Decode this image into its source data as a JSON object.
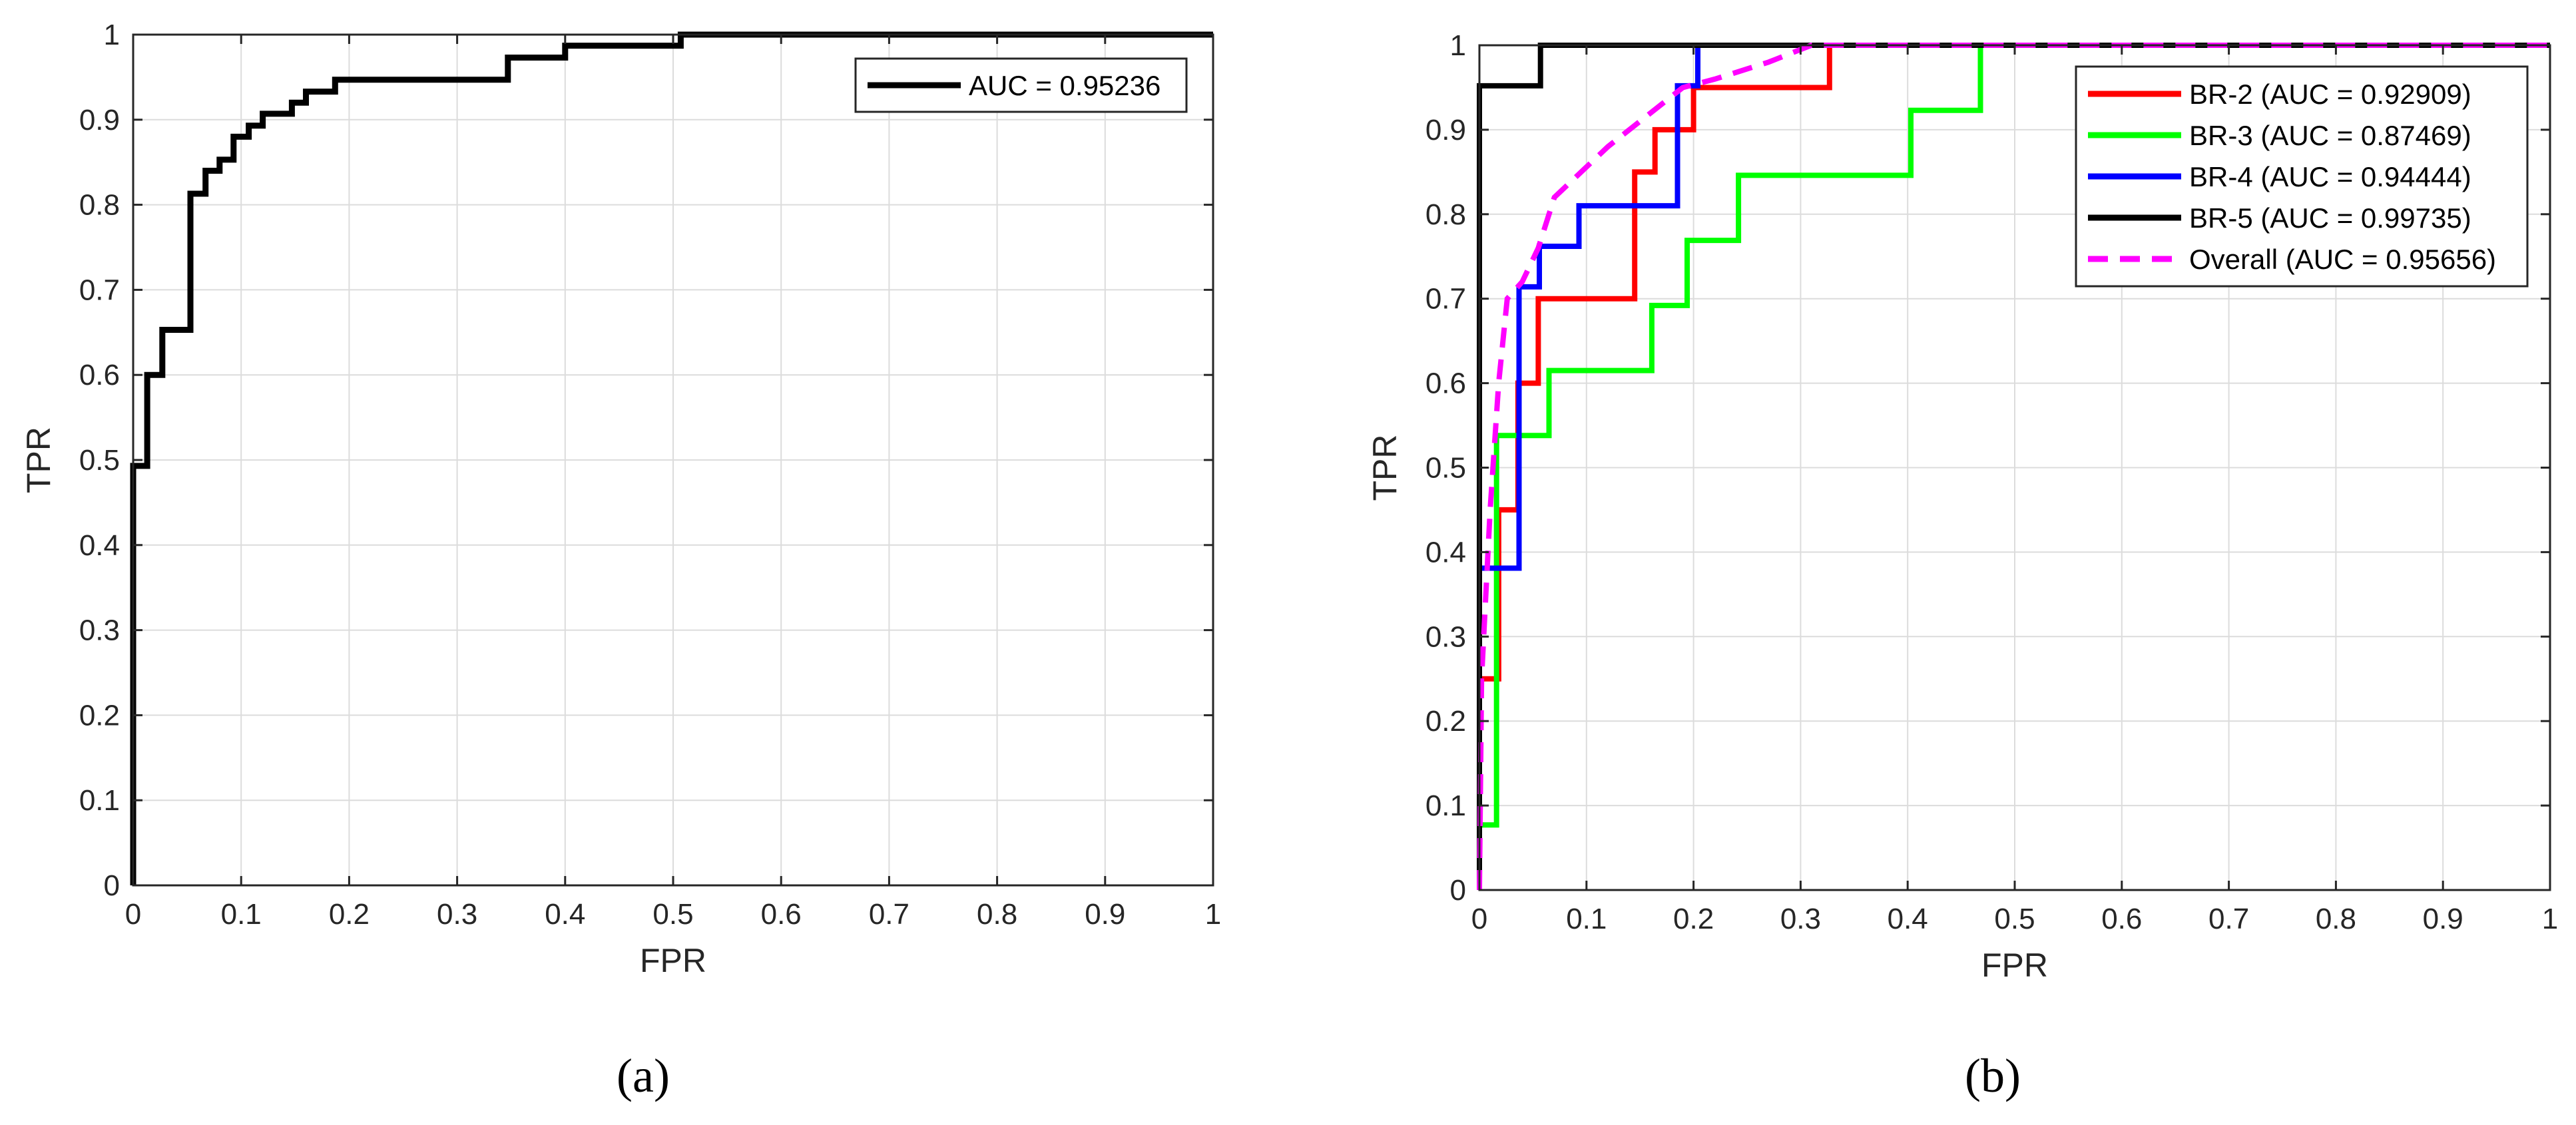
{
  "chart_data": [
    {
      "type": "line",
      "caption": "(a)",
      "xlabel": "FPR",
      "ylabel": "TPR",
      "xlim": [
        0,
        1
      ],
      "ylim": [
        0,
        1
      ],
      "grid": true,
      "legend_position": "top-right",
      "xticks": [
        "0",
        "0.1",
        "0.2",
        "0.3",
        "0.4",
        "0.5",
        "0.6",
        "0.7",
        "0.8",
        "0.9",
        "1"
      ],
      "yticks": [
        "0",
        "0.1",
        "0.2",
        "0.3",
        "0.4",
        "0.5",
        "0.6",
        "0.7",
        "0.8",
        "0.9",
        "1"
      ],
      "series": [
        {
          "name": "AUC = 0.95236",
          "color": "#000000",
          "dashed": false,
          "points": [
            [
              0,
              0
            ],
            [
              0,
              0.493
            ],
            [
              0.013,
              0.493
            ],
            [
              0.013,
              0.6
            ],
            [
              0.027,
              0.6
            ],
            [
              0.027,
              0.653
            ],
            [
              0.053,
              0.653
            ],
            [
              0.053,
              0.813
            ],
            [
              0.067,
              0.813
            ],
            [
              0.067,
              0.84
            ],
            [
              0.08,
              0.84
            ],
            [
              0.08,
              0.853
            ],
            [
              0.093,
              0.853
            ],
            [
              0.093,
              0.88
            ],
            [
              0.107,
              0.88
            ],
            [
              0.107,
              0.893
            ],
            [
              0.12,
              0.893
            ],
            [
              0.12,
              0.907
            ],
            [
              0.147,
              0.907
            ],
            [
              0.147,
              0.92
            ],
            [
              0.16,
              0.92
            ],
            [
              0.16,
              0.933
            ],
            [
              0.187,
              0.933
            ],
            [
              0.187,
              0.947
            ],
            [
              0.347,
              0.947
            ],
            [
              0.347,
              0.973
            ],
            [
              0.4,
              0.973
            ],
            [
              0.4,
              0.987
            ],
            [
              0.507,
              0.987
            ],
            [
              0.507,
              1
            ],
            [
              1,
              1
            ]
          ]
        }
      ]
    },
    {
      "type": "line",
      "caption": "(b)",
      "xlabel": "FPR",
      "ylabel": "TPR",
      "xlim": [
        0,
        1
      ],
      "ylim": [
        0,
        1
      ],
      "grid": true,
      "legend_position": "top-right",
      "xticks": [
        "0",
        "0.1",
        "0.2",
        "0.3",
        "0.4",
        "0.5",
        "0.6",
        "0.7",
        "0.8",
        "0.9",
        "1"
      ],
      "yticks": [
        "0",
        "0.1",
        "0.2",
        "0.3",
        "0.4",
        "0.5",
        "0.6",
        "0.7",
        "0.8",
        "0.9",
        "1"
      ],
      "series": [
        {
          "name": "BR-2 (AUC = 0.92909)",
          "color": "#ff0000",
          "dashed": false,
          "points": [
            [
              0,
              0
            ],
            [
              0,
              0.25
            ],
            [
              0.018,
              0.25
            ],
            [
              0.018,
              0.45
            ],
            [
              0.036,
              0.45
            ],
            [
              0.036,
              0.6
            ],
            [
              0.055,
              0.6
            ],
            [
              0.055,
              0.7
            ],
            [
              0.145,
              0.7
            ],
            [
              0.145,
              0.85
            ],
            [
              0.164,
              0.85
            ],
            [
              0.164,
              0.9
            ],
            [
              0.2,
              0.9
            ],
            [
              0.2,
              0.95
            ],
            [
              0.327,
              0.95
            ],
            [
              0.327,
              1
            ],
            [
              1,
              1
            ]
          ]
        },
        {
          "name": "BR-3 (AUC = 0.87469)",
          "color": "#00ff00",
          "dashed": false,
          "points": [
            [
              0,
              0
            ],
            [
              0,
              0.077
            ],
            [
              0.016,
              0.077
            ],
            [
              0.016,
              0.538
            ],
            [
              0.065,
              0.538
            ],
            [
              0.065,
              0.615
            ],
            [
              0.161,
              0.615
            ],
            [
              0.161,
              0.692
            ],
            [
              0.194,
              0.692
            ],
            [
              0.194,
              0.769
            ],
            [
              0.242,
              0.769
            ],
            [
              0.242,
              0.846
            ],
            [
              0.403,
              0.846
            ],
            [
              0.403,
              0.923
            ],
            [
              0.468,
              0.923
            ],
            [
              0.468,
              1
            ],
            [
              1,
              1
            ]
          ]
        },
        {
          "name": "BR-4 (AUC = 0.94444)",
          "color": "#0000ff",
          "dashed": false,
          "points": [
            [
              0,
              0
            ],
            [
              0,
              0.381
            ],
            [
              0.037,
              0.381
            ],
            [
              0.037,
              0.714
            ],
            [
              0.056,
              0.714
            ],
            [
              0.056,
              0.762
            ],
            [
              0.093,
              0.762
            ],
            [
              0.093,
              0.81
            ],
            [
              0.185,
              0.81
            ],
            [
              0.185,
              0.952
            ],
            [
              0.204,
              0.952
            ],
            [
              0.204,
              1
            ],
            [
              1,
              1
            ]
          ]
        },
        {
          "name": "BR-5 (AUC = 0.99735)",
          "color": "#000000",
          "dashed": false,
          "points": [
            [
              0,
              0
            ],
            [
              0,
              0.952
            ],
            [
              0.057,
              0.952
            ],
            [
              0.057,
              1
            ],
            [
              1,
              1
            ]
          ]
        },
        {
          "name": "Overall (AUC = 0.95656)",
          "color": "#ff00ff",
          "dashed": true,
          "points": [
            [
              0,
              0
            ],
            [
              0.002,
              0.25
            ],
            [
              0.01,
              0.45
            ],
            [
              0.018,
              0.6
            ],
            [
              0.026,
              0.7
            ],
            [
              0.04,
              0.72
            ],
            [
              0.055,
              0.76
            ],
            [
              0.07,
              0.82
            ],
            [
              0.12,
              0.88
            ],
            [
              0.15,
              0.91
            ],
            [
              0.19,
              0.95
            ],
            [
              0.22,
              0.96
            ],
            [
              0.27,
              0.98
            ],
            [
              0.31,
              1.0
            ],
            [
              1,
              1
            ]
          ]
        }
      ]
    }
  ]
}
